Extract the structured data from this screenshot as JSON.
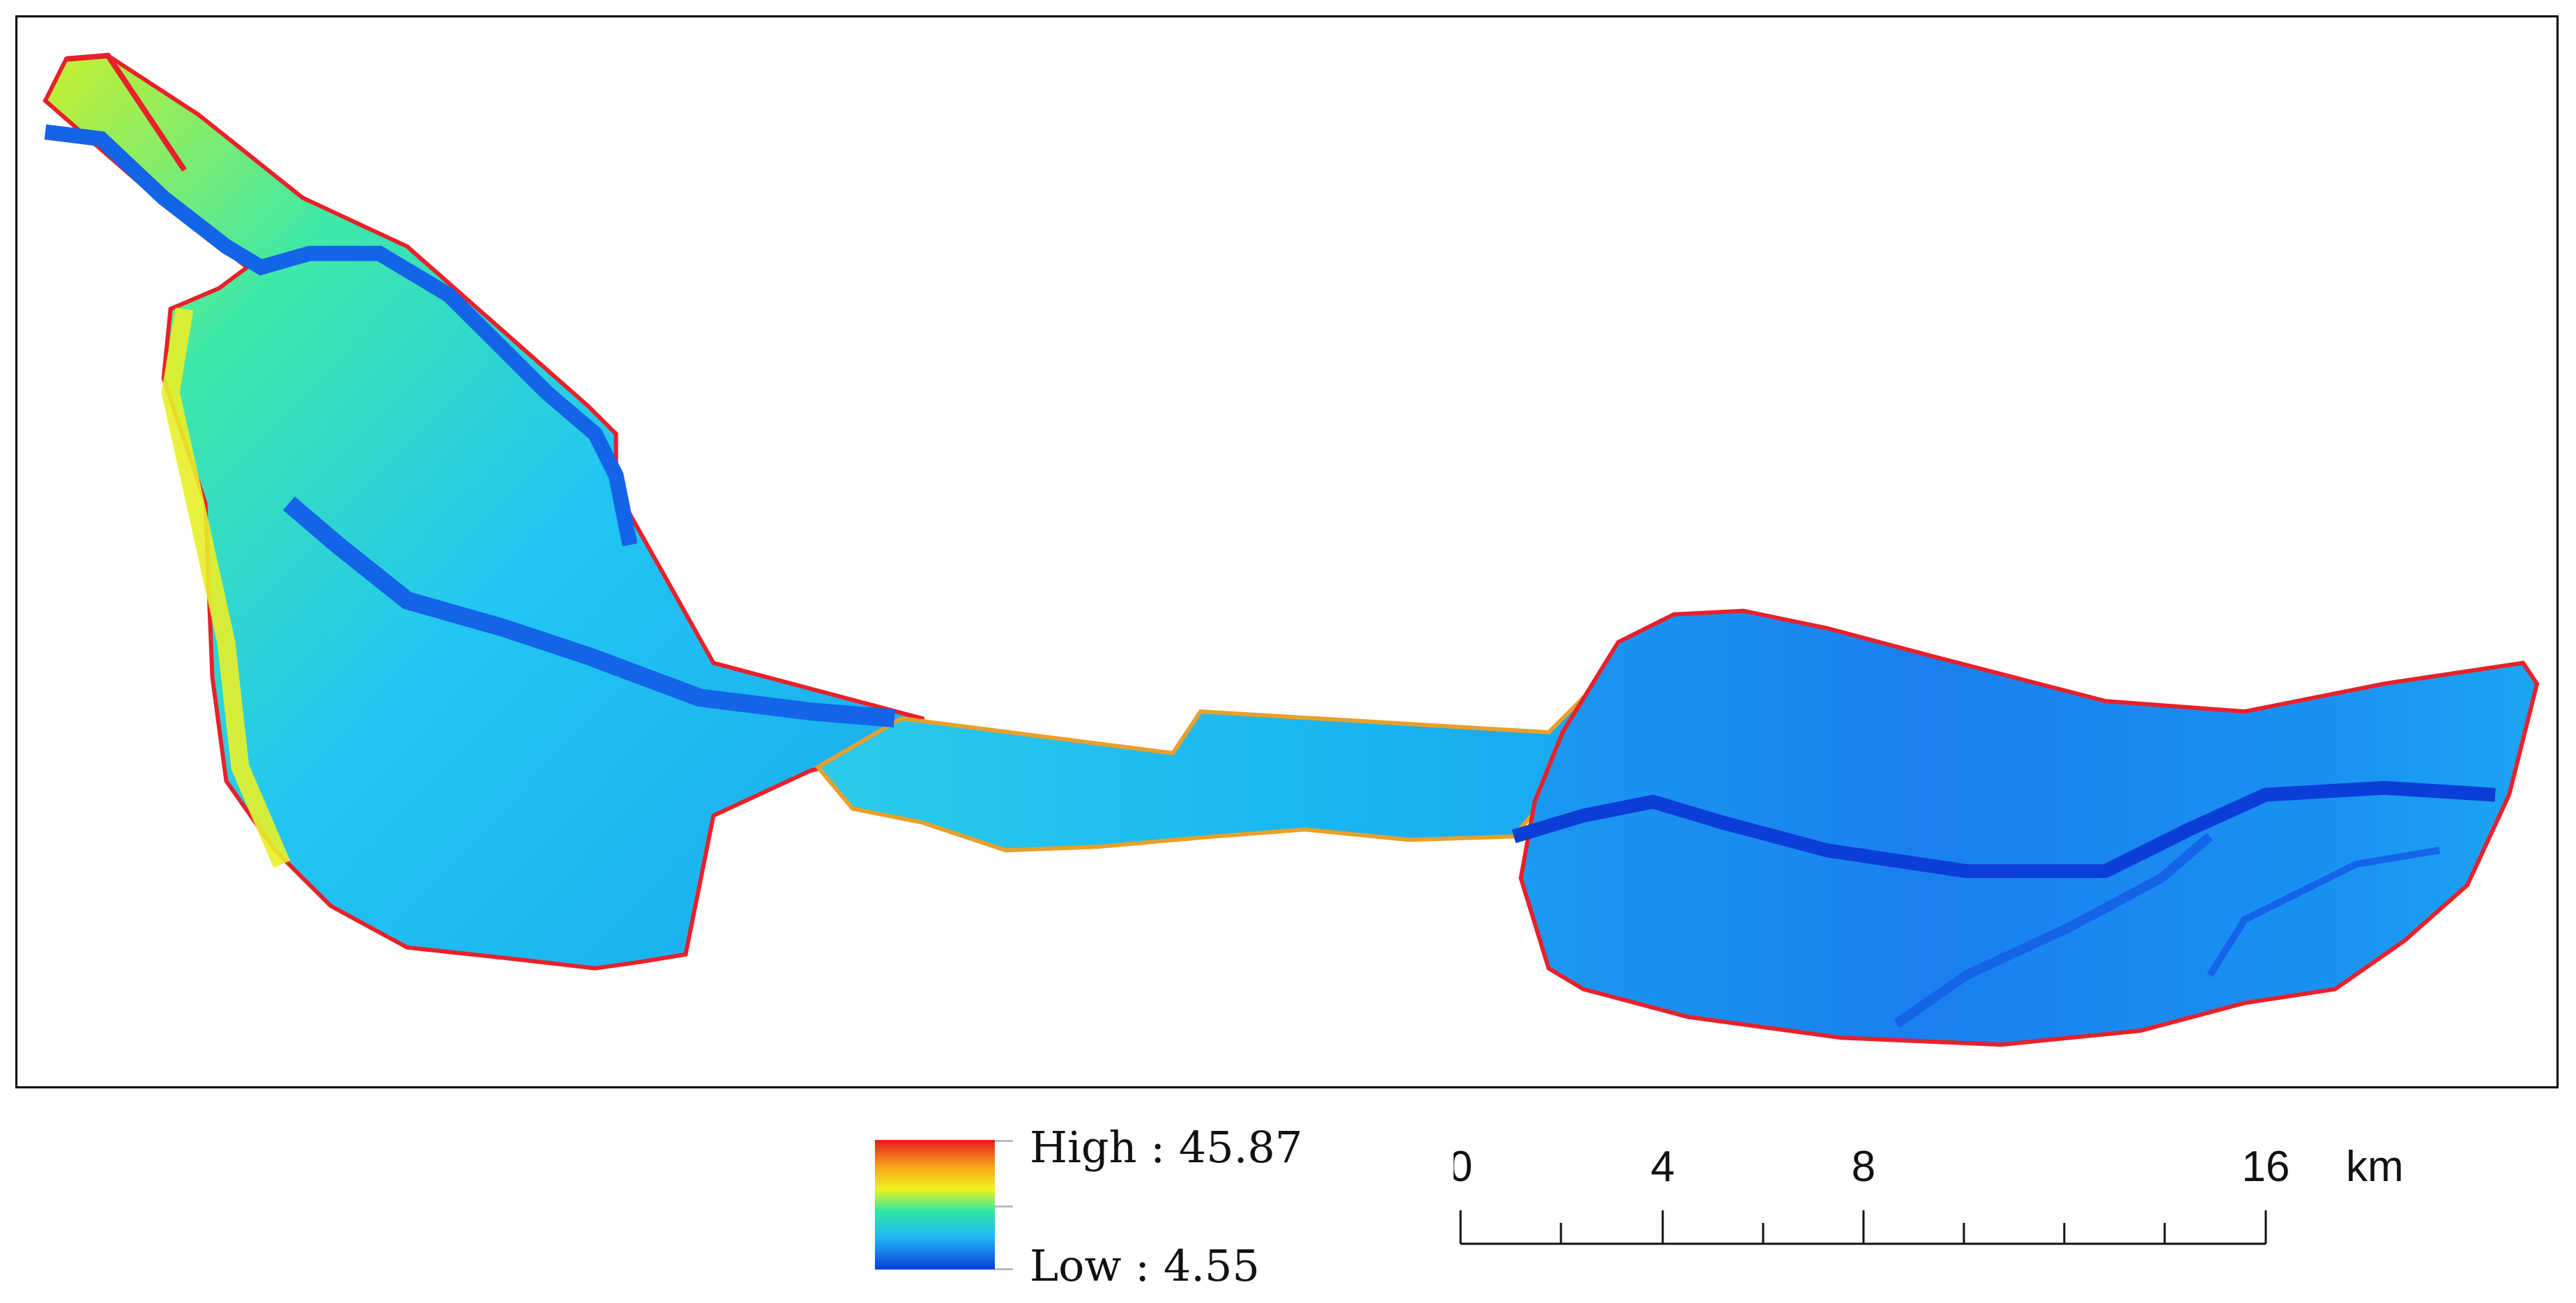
{
  "legend": {
    "high_label": "High : 45.87",
    "low_label": "Low : 4.55",
    "ramp_colors": [
      "#e8181e",
      "#f7a11a",
      "#f2f21d",
      "#2fe8a3",
      "#1fb8f5",
      "#0a3cdc"
    ]
  },
  "scalebar": {
    "ticks": [
      "0",
      "4",
      "8",
      "16"
    ],
    "unit": "km"
  },
  "map": {
    "colors": {
      "low": "#1a5ff0",
      "mid": "#1cc0f4",
      "high_mid": "#39f0b0",
      "yellow": "#e8f028",
      "red": "#e8202a",
      "river": "#1464e8",
      "deep": "#0b3dd8"
    }
  }
}
